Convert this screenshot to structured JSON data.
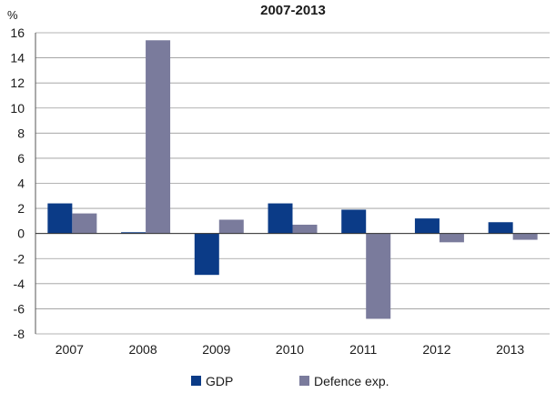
{
  "chart_data": {
    "type": "bar",
    "title": "2007-2013",
    "ylabel": "%",
    "xlabel": "",
    "categories": [
      "2007",
      "2008",
      "2009",
      "2010",
      "2011",
      "2012",
      "2013"
    ],
    "series": [
      {
        "name": "GDP",
        "color": "#0b3b87",
        "values": [
          2.4,
          0.1,
          -3.3,
          2.4,
          1.9,
          1.2,
          0.9
        ]
      },
      {
        "name": "Defence exp.",
        "color": "#7a7b9c",
        "values": [
          1.6,
          15.4,
          1.1,
          0.7,
          -6.8,
          -0.7,
          -0.5
        ]
      }
    ],
    "ylim": [
      -8,
      16
    ],
    "yticks": [
      -8,
      -6,
      -4,
      -2,
      0,
      2,
      4,
      6,
      8,
      10,
      12,
      14,
      16
    ],
    "grid": true,
    "legend": "bottom"
  }
}
